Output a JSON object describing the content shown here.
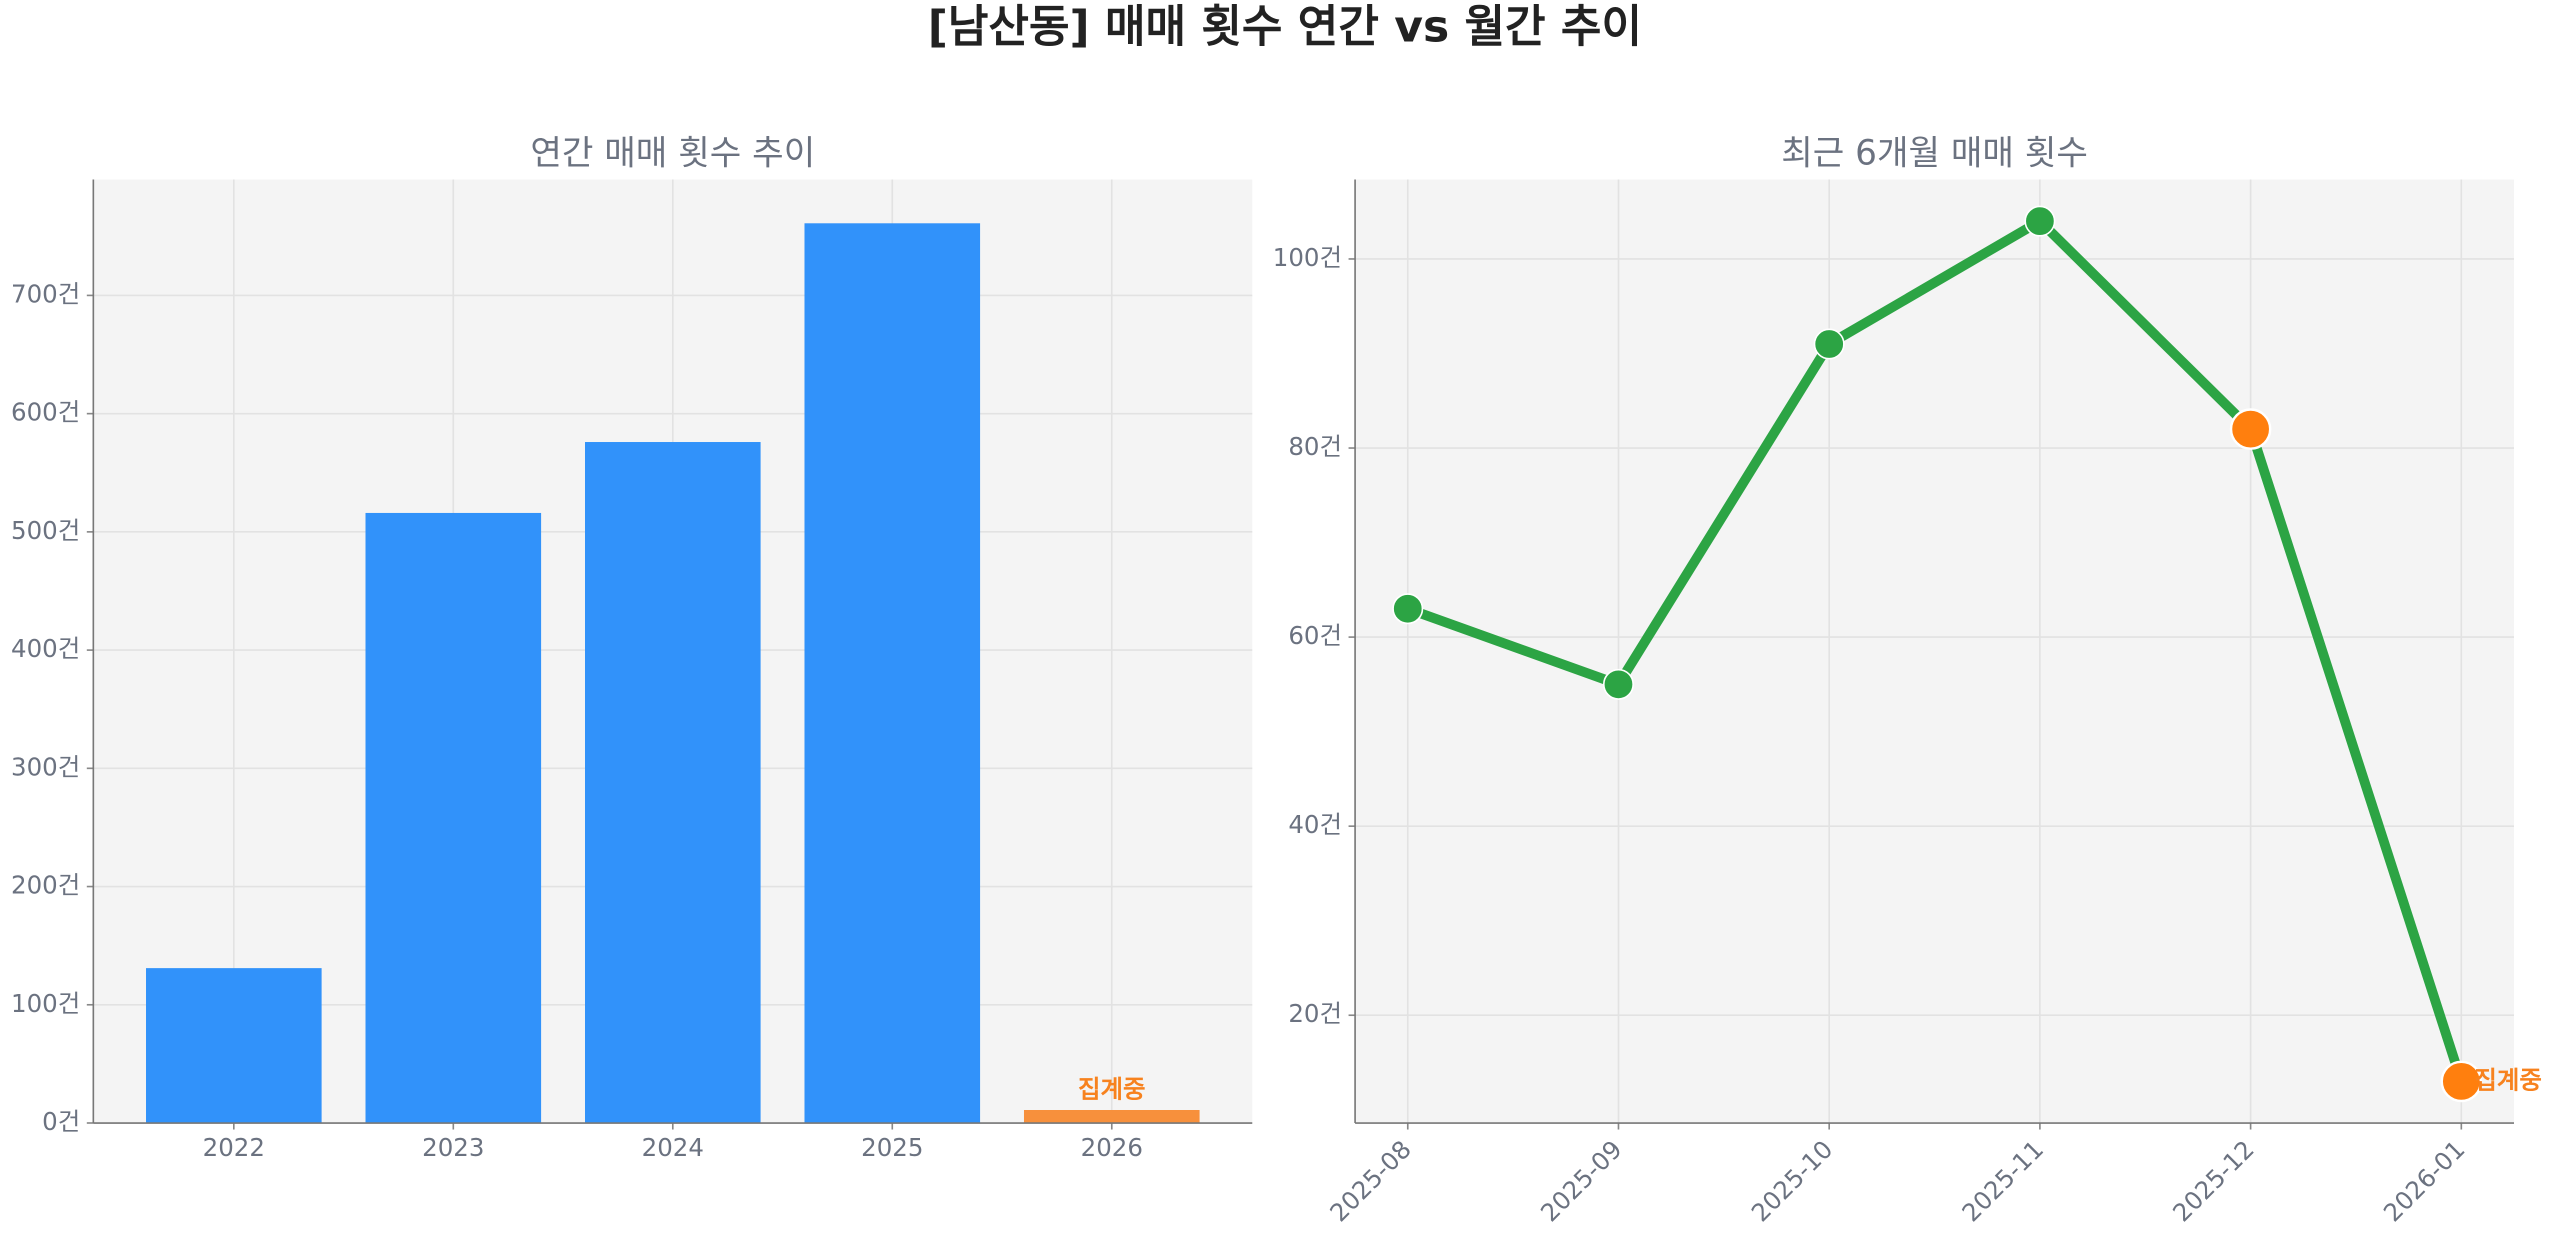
{
  "title": "[남산동] 매매 횟수 연간 vs 월간 추이",
  "chart_data": [
    {
      "type": "bar",
      "title": "연간 매매 횟수 추이",
      "categories": [
        "2022",
        "2023",
        "2024",
        "2025",
        "2026"
      ],
      "values": [
        131,
        516,
        576,
        761,
        11
      ],
      "colors": [
        "#3192fa",
        "#3192fa",
        "#3192fa",
        "#3192fa",
        "#f7903c"
      ],
      "ylim": [
        0,
        798
      ],
      "yticks": [
        {
          "value": 0,
          "label": "0건"
        },
        {
          "value": 100,
          "label": "100건"
        },
        {
          "value": 200,
          "label": "200건"
        },
        {
          "value": 300,
          "label": "300건"
        },
        {
          "value": 400,
          "label": "400건"
        },
        {
          "value": 500,
          "label": "500건"
        },
        {
          "value": 600,
          "label": "600건"
        },
        {
          "value": 700,
          "label": "700건"
        }
      ],
      "grid": true,
      "annotations": [
        "집계중"
      ],
      "annotation_color": "#f7821e"
    },
    {
      "type": "line",
      "title": "최근 6개월 매매 횟수",
      "categories": [
        "2025-08",
        "2025-09",
        "2025-10",
        "2025-11",
        "2025-12",
        "2026-01"
      ],
      "values": [
        63,
        55,
        91,
        104,
        82,
        13
      ],
      "color": "#2ca444",
      "point_colors": [
        "#2ca444",
        "#2ca444",
        "#2ca444",
        "#2ca444",
        "#ff7f0e",
        "#ff7f0e"
      ],
      "ylim": [
        8.6,
        108.4
      ],
      "yticks": [
        {
          "value": 20,
          "label": "20건"
        },
        {
          "value": 40,
          "label": "40건"
        },
        {
          "value": 60,
          "label": "60건"
        },
        {
          "value": 80,
          "label": "80건"
        },
        {
          "value": 100,
          "label": "100건"
        }
      ],
      "grid": true,
      "annotations": [
        "집계중"
      ],
      "annotation_color": "#f7821e"
    }
  ]
}
